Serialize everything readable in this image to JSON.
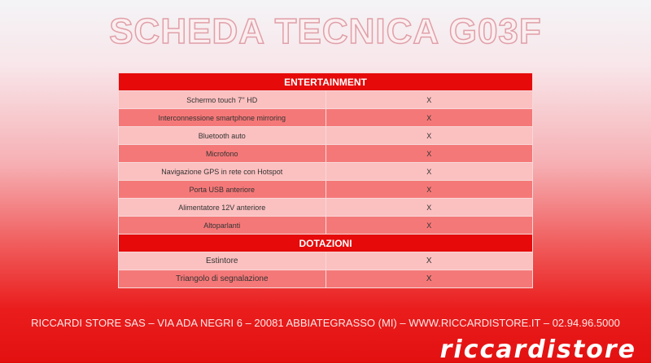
{
  "title": "SCHEDA TECNICA G03F",
  "sections": [
    {
      "header": "ENTERTAINMENT",
      "rows": [
        {
          "label": "Schermo touch 7'' HD",
          "value": "X"
        },
        {
          "label": "Interconnessione smartphone mirroring",
          "value": "X"
        },
        {
          "label": "Bluetooth auto",
          "value": "X"
        },
        {
          "label": "Microfono",
          "value": "X"
        },
        {
          "label": "Navigazione GPS in rete con Hotspot",
          "value": "X"
        },
        {
          "label": "Porta USB anteriore",
          "value": "X"
        },
        {
          "label": "Alimentatore 12V anteriore",
          "value": "X"
        },
        {
          "label": "Altoparlanti",
          "value": "X"
        }
      ]
    },
    {
      "header": "DOTAZIONI",
      "rows": [
        {
          "label": "Estintore",
          "value": "X"
        },
        {
          "label": "Triangolo di segnalazione",
          "value": "X"
        }
      ]
    }
  ],
  "footer": {
    "prefix": "RICCARDI STORE SAS – VIA ADA NEGRI 6 – 20081 ABBIATEGRASSO (MI) – ",
    "link": "WWW.RICCARDISTORE.IT",
    "suffix": " – 02.94.96.5000"
  },
  "logo": "riccardistore"
}
